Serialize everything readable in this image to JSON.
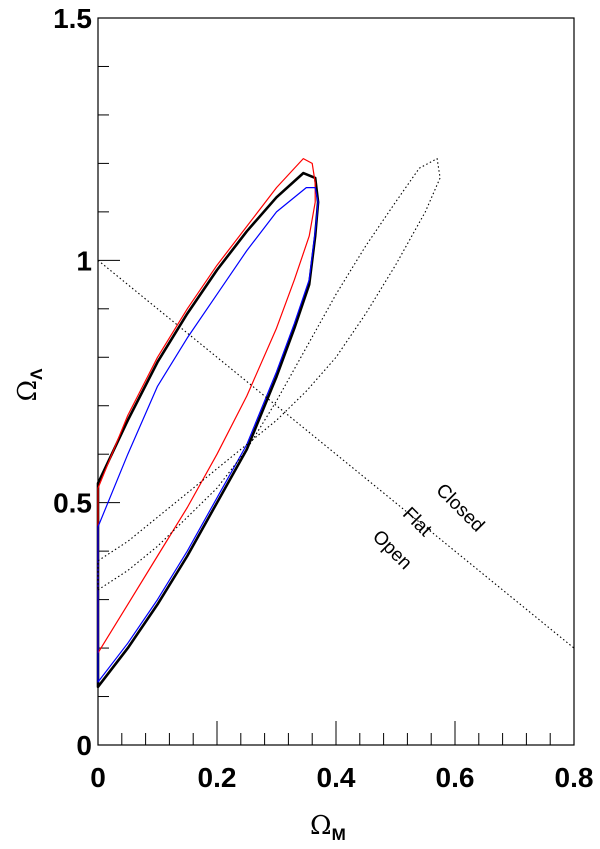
{
  "chart_data": {
    "type": "line",
    "xlabel": "Ω",
    "xlabel_sub": "M",
    "ylabel": "Ω",
    "ylabel_sub": "Λ",
    "xlim": [
      0,
      0.8
    ],
    "ylim": [
      0,
      1.5
    ],
    "x_ticks": [
      0,
      0.2,
      0.4,
      0.6,
      0.8
    ],
    "x_tick_labels": [
      "0",
      "0.2",
      "0.4",
      "0.6",
      "0.8"
    ],
    "y_ticks": [
      0,
      0.5,
      1,
      1.5
    ],
    "y_tick_labels": [
      "0",
      "0.5",
      "1",
      "1.5"
    ],
    "grid": false,
    "annotations": [
      "Closed",
      "Flat",
      "Open"
    ],
    "series": [
      {
        "color": "#000000",
        "style": "solid-thick",
        "points": [
          [
            0,
            0.12
          ],
          [
            0.05,
            0.2
          ],
          [
            0.1,
            0.29
          ],
          [
            0.15,
            0.39
          ],
          [
            0.2,
            0.5
          ],
          [
            0.25,
            0.61
          ],
          [
            0.3,
            0.76
          ],
          [
            0.33,
            0.86
          ],
          [
            0.355,
            0.95
          ],
          [
            0.365,
            1.05
          ],
          [
            0.37,
            1.12
          ],
          [
            0.365,
            1.17
          ],
          [
            0.345,
            1.18
          ],
          [
            0.3,
            1.13
          ],
          [
            0.25,
            1.06
          ],
          [
            0.2,
            0.98
          ],
          [
            0.15,
            0.89
          ],
          [
            0.1,
            0.79
          ],
          [
            0.05,
            0.67
          ],
          [
            0,
            0.54
          ]
        ]
      },
      {
        "color": "#ff0000",
        "style": "solid",
        "points": [
          [
            0,
            0.19
          ],
          [
            0.05,
            0.29
          ],
          [
            0.1,
            0.39
          ],
          [
            0.15,
            0.49
          ],
          [
            0.2,
            0.6
          ],
          [
            0.25,
            0.72
          ],
          [
            0.3,
            0.86
          ],
          [
            0.33,
            0.96
          ],
          [
            0.355,
            1.05
          ],
          [
            0.365,
            1.12
          ],
          [
            0.365,
            1.16
          ],
          [
            0.36,
            1.2
          ],
          [
            0.345,
            1.21
          ],
          [
            0.3,
            1.15
          ],
          [
            0.25,
            1.07
          ],
          [
            0.2,
            0.99
          ],
          [
            0.15,
            0.9
          ],
          [
            0.1,
            0.8
          ],
          [
            0.05,
            0.68
          ],
          [
            0,
            0.53
          ]
        ]
      },
      {
        "color": "#0000ff",
        "style": "solid",
        "points": [
          [
            0,
            0.13
          ],
          [
            0.05,
            0.21
          ],
          [
            0.1,
            0.3
          ],
          [
            0.15,
            0.4
          ],
          [
            0.2,
            0.51
          ],
          [
            0.25,
            0.62
          ],
          [
            0.3,
            0.77
          ],
          [
            0.33,
            0.87
          ],
          [
            0.355,
            0.96
          ],
          [
            0.365,
            1.06
          ],
          [
            0.37,
            1.12
          ],
          [
            0.365,
            1.15
          ],
          [
            0.35,
            1.15
          ],
          [
            0.3,
            1.1
          ],
          [
            0.25,
            1.02
          ],
          [
            0.2,
            0.93
          ],
          [
            0.15,
            0.84
          ],
          [
            0.1,
            0.74
          ],
          [
            0.05,
            0.6
          ],
          [
            0,
            0.45
          ]
        ]
      },
      {
        "color": "#000000",
        "style": "dotted-closed",
        "points": [
          [
            0,
            0.32
          ],
          [
            0.05,
            0.36
          ],
          [
            0.1,
            0.41
          ],
          [
            0.15,
            0.47
          ],
          [
            0.2,
            0.53
          ],
          [
            0.25,
            0.61
          ],
          [
            0.3,
            0.71
          ],
          [
            0.35,
            0.82
          ],
          [
            0.4,
            0.93
          ],
          [
            0.45,
            1.03
          ],
          [
            0.5,
            1.12
          ],
          [
            0.54,
            1.19
          ],
          [
            0.57,
            1.21
          ],
          [
            0.575,
            1.17
          ],
          [
            0.55,
            1.1
          ],
          [
            0.5,
            0.99
          ],
          [
            0.45,
            0.89
          ],
          [
            0.4,
            0.8
          ],
          [
            0.35,
            0.73
          ],
          [
            0.3,
            0.67
          ],
          [
            0.25,
            0.62
          ],
          [
            0.2,
            0.57
          ],
          [
            0.15,
            0.52
          ],
          [
            0.1,
            0.47
          ],
          [
            0.05,
            0.42
          ],
          [
            0,
            0.38
          ]
        ]
      },
      {
        "color": "#000000",
        "style": "dotted",
        "points": [
          [
            0,
            1.0
          ],
          [
            0.8,
            0.2
          ]
        ]
      }
    ]
  }
}
